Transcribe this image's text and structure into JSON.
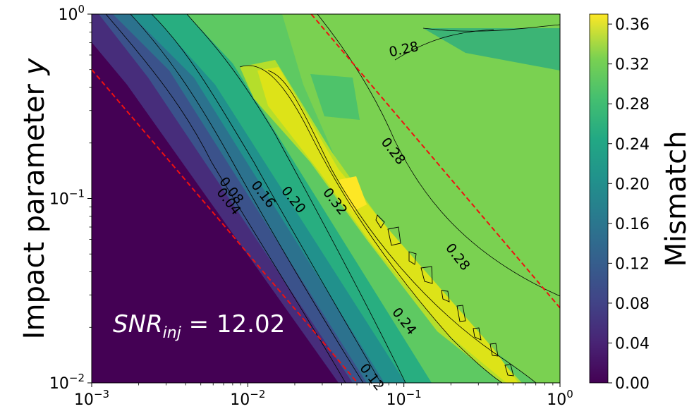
{
  "chart_data": {
    "type": "heatmap",
    "subtype": "filled-contour",
    "xscale": "log",
    "yscale": "log",
    "xlim": [
      0.001,
      1
    ],
    "ylim": [
      0.01,
      1
    ],
    "ylabel": "Impact parameter y",
    "ylabel_main": "Impact parameter ",
    "ylabel_var": "y",
    "xlabel": "",
    "x_ticks": [
      {
        "value": 0.001,
        "base": "10",
        "exp": "−3"
      },
      {
        "value": 0.01,
        "base": "10",
        "exp": "−2"
      },
      {
        "value": 0.1,
        "base": "10",
        "exp": "−1"
      },
      {
        "value": 1,
        "base": "10",
        "exp": "0"
      }
    ],
    "y_ticks": [
      {
        "value": 0.01,
        "base": "10",
        "exp": "−2"
      },
      {
        "value": 0.1,
        "base": "10",
        "exp": "−1"
      },
      {
        "value": 1,
        "base": "10",
        "exp": "0"
      }
    ],
    "colormap": "viridis",
    "colorbar": {
      "label": "Mismatch",
      "min": 0.0,
      "max": 0.37,
      "ticks": [
        "0.00",
        "0.04",
        "0.08",
        "0.12",
        "0.16",
        "0.20",
        "0.24",
        "0.28",
        "0.32",
        "0.36"
      ]
    },
    "contour_labels": [
      {
        "text": "0.04",
        "x": 0.0075,
        "y": 0.096
      },
      {
        "text": "0.08",
        "x": 0.0078,
        "y": 0.11
      },
      {
        "text": "0.16",
        "x": 0.0125,
        "y": 0.105
      },
      {
        "text": "0.20",
        "x": 0.0195,
        "y": 0.098
      },
      {
        "text": "0.32",
        "x": 0.036,
        "y": 0.096
      },
      {
        "text": "0.28",
        "x": 0.1,
        "y": 0.64
      },
      {
        "text": "0.28",
        "x": 0.085,
        "y": 0.18
      },
      {
        "text": "0.28",
        "x": 0.22,
        "y": 0.048
      },
      {
        "text": "0.24",
        "x": 0.1,
        "y": 0.0215
      },
      {
        "text": "0.12",
        "x": 0.062,
        "y": 0.0107
      }
    ],
    "reference_lines": [
      {
        "style": "dashed",
        "color": "#ee1111",
        "from": [
          0.001,
          0.5
        ],
        "to": [
          0.0505,
          0.01
        ]
      },
      {
        "style": "dashed",
        "color": "#ee1111",
        "from": [
          0.0255,
          1.0
        ],
        "to": [
          1.0,
          0.0255
        ]
      }
    ],
    "annotation": {
      "base": "SNR",
      "sub": "inj",
      "rest": " = 12.02"
    }
  }
}
